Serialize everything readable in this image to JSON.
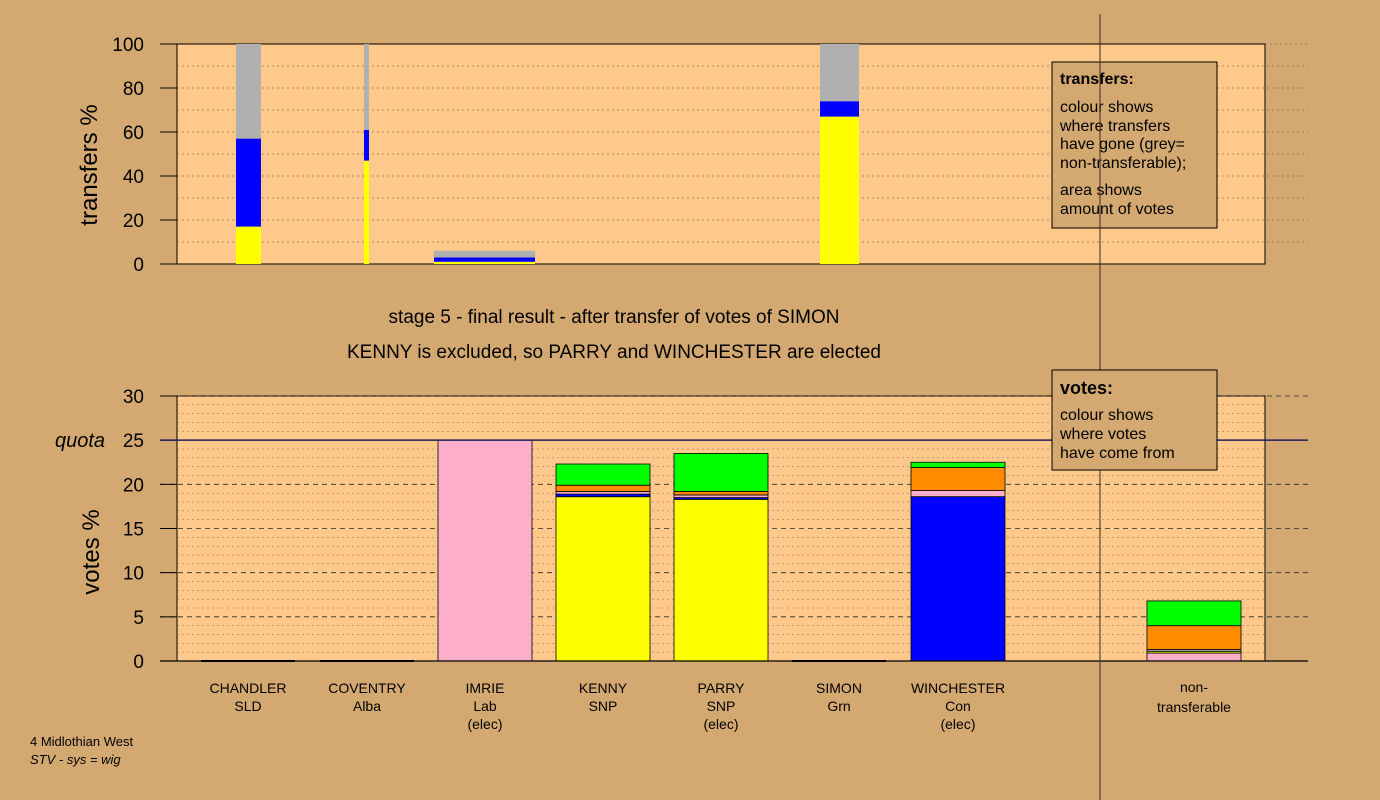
{
  "titles": {
    "line1": "stage 5 - final result - after transfer of votes of SIMON",
    "line2": "KENNY is excluded, so PARRY and WINCHESTER are elected"
  },
  "footer": {
    "line1": "4 Midlothian West",
    "line2": "STV - sys = wig"
  },
  "legend_transfers": {
    "title": "transfers:",
    "lines": [
      "colour shows",
      "where transfers",
      "have gone (grey=",
      "non-transferable);"
    ],
    "lines2": [
      "area shows",
      "amount of votes"
    ]
  },
  "legend_votes": {
    "title": "votes:",
    "lines": [
      "colour shows",
      "where votes",
      "have come from"
    ]
  },
  "colors": {
    "background": "#d4a971",
    "plot_bg": "#ffc98b",
    "SNP": "#ffff00",
    "Con": "#0000ff",
    "Lab": "#ffaec9",
    "Grn": "#00ff00",
    "Alba": "#ff8c00",
    "SLD": "#b0b0b0",
    "nontransferable": "#b0b0b0"
  },
  "chart_data": [
    {
      "type": "bar",
      "title": "",
      "ylabel": "transfers %",
      "ylim": [
        0,
        100
      ],
      "yticks": [
        0,
        20,
        40,
        60,
        80,
        100
      ],
      "note": "stacked transfer bars; bar widths proportional to transferred votes",
      "bars": [
        {
          "candidate": "CHANDLER",
          "segments": [
            {
              "party": "SNP",
              "value": 17
            },
            {
              "party": "Con",
              "value": 40
            },
            {
              "party": "nontransferable",
              "value": 43
            }
          ]
        },
        {
          "candidate": "COVENTRY",
          "segments": [
            {
              "party": "SNP",
              "value": 47
            },
            {
              "party": "Con",
              "value": 14
            },
            {
              "party": "nontransferable",
              "value": 39
            }
          ]
        },
        {
          "candidate": "IMRIE",
          "segments": [
            {
              "party": "SNP",
              "value": 1
            },
            {
              "party": "Con",
              "value": 2
            },
            {
              "party": "nontransferable",
              "value": 3
            }
          ]
        },
        {
          "candidate": "SIMON",
          "segments": [
            {
              "party": "SNP",
              "value": 67
            },
            {
              "party": "Con",
              "value": 7
            },
            {
              "party": "nontransferable",
              "value": 26
            }
          ]
        }
      ]
    },
    {
      "type": "bar",
      "title": "",
      "ylabel": "votes %",
      "ylim": [
        0,
        30
      ],
      "yticks": [
        0,
        5,
        10,
        15,
        20,
        25,
        30
      ],
      "quota": 25,
      "quota_label": "quota",
      "categories": [
        {
          "name": "CHANDLER",
          "party": "SLD",
          "status": ""
        },
        {
          "name": "COVENTRY",
          "party": "Alba",
          "status": ""
        },
        {
          "name": "IMRIE",
          "party": "Lab",
          "status": "(elec)"
        },
        {
          "name": "KENNY",
          "party": "SNP",
          "status": ""
        },
        {
          "name": "PARRY",
          "party": "SNP",
          "status": "(elec)"
        },
        {
          "name": "SIMON",
          "party": "Grn",
          "status": ""
        },
        {
          "name": "WINCHESTER",
          "party": "Con",
          "status": "(elec)"
        }
      ],
      "nontransferable_label": [
        "non-",
        "transferable"
      ],
      "stacks": [
        [],
        [],
        [
          {
            "source": "Lab",
            "value": 25.0
          }
        ],
        [
          {
            "source": "SNP",
            "value": 18.6
          },
          {
            "source": "Con",
            "value": 0.3
          },
          {
            "source": "Lab",
            "value": 0.3
          },
          {
            "source": "Alba",
            "value": 0.7
          },
          {
            "source": "Grn",
            "value": 2.4
          }
        ],
        [
          {
            "source": "SNP",
            "value": 18.3
          },
          {
            "source": "Con",
            "value": 0.2
          },
          {
            "source": "Lab",
            "value": 0.3
          },
          {
            "source": "Alba",
            "value": 0.4
          },
          {
            "source": "Grn",
            "value": 4.3
          }
        ],
        [],
        [
          {
            "source": "Con",
            "value": 18.6
          },
          {
            "source": "Lab",
            "value": 0.7
          },
          {
            "source": "Alba",
            "value": 2.6
          },
          {
            "source": "Grn",
            "value": 0.6
          }
        ],
        [
          {
            "source": "Lab",
            "value": 0.9
          },
          {
            "source": "SNP",
            "value": 0.2
          },
          {
            "source": "SLD",
            "value": 0.2
          },
          {
            "source": "Alba",
            "value": 2.7
          },
          {
            "source": "Grn",
            "value": 2.8
          }
        ]
      ]
    }
  ]
}
